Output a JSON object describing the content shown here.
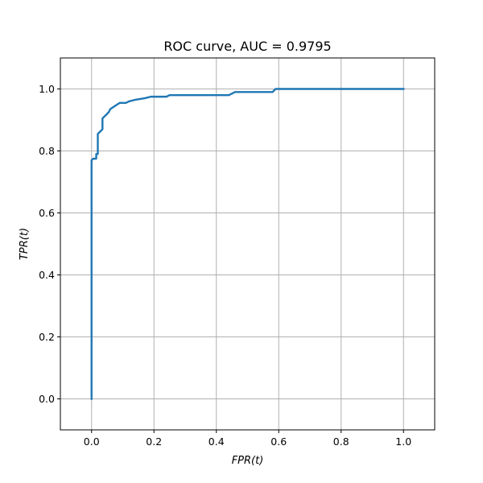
{
  "chart_data": {
    "type": "line",
    "title": "ROC curve, AUC = 0.9795",
    "xlabel": "FPR(t)",
    "ylabel": "TPR(t)",
    "xlim": [
      -0.1,
      1.1
    ],
    "ylim": [
      -0.1,
      1.1
    ],
    "grid": true,
    "x_ticks": [
      0.0,
      0.2,
      0.4,
      0.6,
      0.8,
      1.0
    ],
    "y_ticks": [
      0.0,
      0.2,
      0.4,
      0.6,
      0.8,
      1.0
    ],
    "x_tick_labels": [
      "0.0",
      "0.2",
      "0.4",
      "0.6",
      "0.8",
      "1.0"
    ],
    "y_tick_labels": [
      "0.0",
      "0.2",
      "0.4",
      "0.6",
      "0.8",
      "1.0"
    ],
    "series": [
      {
        "color": "#1f77b4",
        "x": [
          0.0,
          0.0,
          0.005,
          0.015,
          0.015,
          0.02,
          0.02,
          0.02,
          0.03,
          0.035,
          0.035,
          0.045,
          0.055,
          0.06,
          0.06,
          0.075,
          0.09,
          0.11,
          0.12,
          0.14,
          0.17,
          0.19,
          0.24,
          0.25,
          0.44,
          0.46,
          0.58,
          0.59,
          1.0
        ],
        "y": [
          0.0,
          0.77,
          0.775,
          0.775,
          0.79,
          0.79,
          0.855,
          0.855,
          0.865,
          0.87,
          0.905,
          0.915,
          0.925,
          0.935,
          0.935,
          0.945,
          0.955,
          0.955,
          0.96,
          0.965,
          0.97,
          0.975,
          0.975,
          0.98,
          0.98,
          0.99,
          0.99,
          1.0,
          1.0
        ]
      }
    ]
  }
}
